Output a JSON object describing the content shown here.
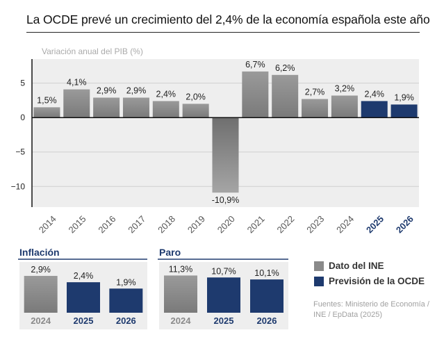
{
  "title": "La OCDE prevé un crecimiento del 2,4% de la economía española este año",
  "colors": {
    "ine_gray": "#8a8a8a",
    "ocde_navy": "#1e3a6e",
    "panel_bg": "#eeeeee",
    "axis_label": "#aaaaaa"
  },
  "chart_data": [
    {
      "type": "bar",
      "title": "Variación anual del PIB (%)",
      "categories": [
        "2014",
        "2015",
        "2016",
        "2017",
        "2018",
        "2019",
        "2020",
        "2021",
        "2022",
        "2023",
        "2024",
        "2025",
        "2026"
      ],
      "values": [
        1.5,
        4.1,
        2.9,
        2.9,
        2.4,
        2.0,
        -10.9,
        6.7,
        6.2,
        2.7,
        3.2,
        2.4,
        1.9
      ],
      "data_labels": [
        "1,5%",
        "4,1%",
        "2,9%",
        "2,9%",
        "2,4%",
        "2,0%",
        "-10,9%",
        "6,7%",
        "6,2%",
        "2,7%",
        "3,2%",
        "2,4%",
        "1,9%"
      ],
      "series_type": [
        "ine",
        "ine",
        "ine",
        "ine",
        "ine",
        "ine",
        "ine",
        "ine",
        "ine",
        "ine",
        "ine",
        "ocde",
        "ocde"
      ],
      "yticks": [
        -10,
        -5,
        0,
        5
      ],
      "ytick_labels": [
        "−10",
        "−5",
        "0",
        "5"
      ],
      "ylim": [
        -13,
        8.5
      ],
      "xlabel": "",
      "ylabel": ""
    },
    {
      "type": "bar",
      "title": "Inflación",
      "categories": [
        "2024",
        "2025",
        "2026"
      ],
      "values": [
        2.9,
        2.4,
        1.9
      ],
      "data_labels": [
        "2,9%",
        "2,4%",
        "1,9%"
      ],
      "series_type": [
        "ine",
        "ocde",
        "ocde"
      ],
      "ylim": [
        0,
        3.5
      ]
    },
    {
      "type": "bar",
      "title": "Paro",
      "categories": [
        "2024",
        "2025",
        "2026"
      ],
      "values": [
        11.3,
        10.7,
        10.1
      ],
      "data_labels": [
        "11,3%",
        "10,7%",
        "10,1%"
      ],
      "series_type": [
        "ine",
        "ocde",
        "ocde"
      ],
      "ylim": [
        0,
        13.5
      ]
    }
  ],
  "legend": {
    "ine_label": "Dato del INE",
    "ocde_label": "Previsión de la OCDE"
  },
  "sources": "Fuentes: Ministerio de Economía / INE / EpData (2025)"
}
